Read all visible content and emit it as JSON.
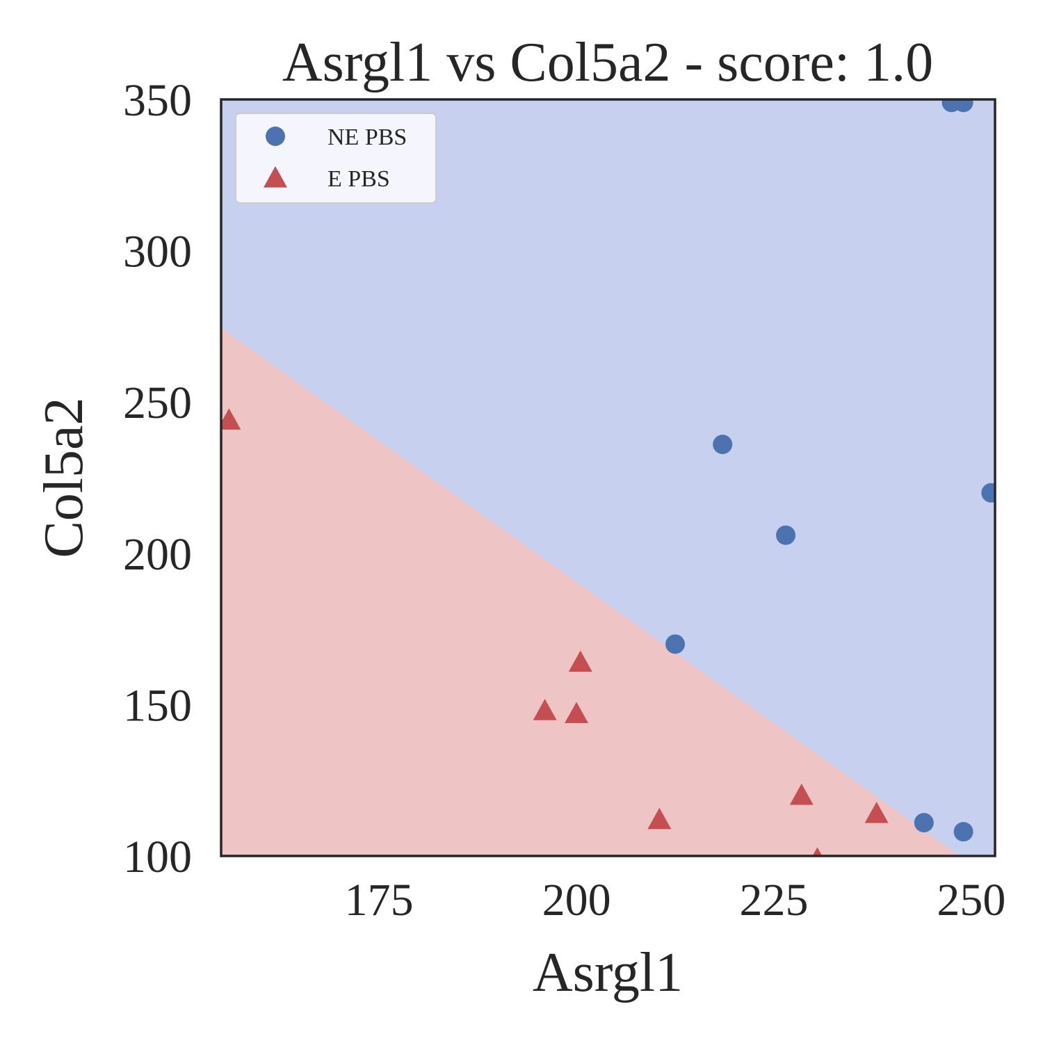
{
  "chart_data": {
    "type": "scatter",
    "title": "Asrgl1 vs Col5a2 - score: 1.0",
    "xlabel": "Asrgl1",
    "ylabel": "Col5a2",
    "xlim": [
      155,
      253
    ],
    "ylim": [
      100,
      350
    ],
    "xticks": [
      175,
      200,
      225,
      250
    ],
    "yticks": [
      100,
      150,
      200,
      250,
      300,
      350
    ],
    "grid": false,
    "legend_position": "top-left",
    "decision_regions": {
      "boundary": [
        [
          155,
          274.5
        ],
        [
          248.5,
          100
        ]
      ],
      "upper_color": "#c8d0f0",
      "lower_color": "#efc4c4"
    },
    "series": [
      {
        "name": "NE PBS",
        "marker": "circle",
        "color": "#4c72b0",
        "points": [
          [
            247.5,
            349
          ],
          [
            249,
            349
          ],
          [
            218.5,
            236
          ],
          [
            226.5,
            206
          ],
          [
            212.5,
            170
          ],
          [
            252.5,
            220
          ],
          [
            244,
            111
          ],
          [
            249,
            108
          ]
        ]
      },
      {
        "name": "E PBS",
        "marker": "triangle",
        "color": "#c44e52",
        "points": [
          [
            156,
            244
          ],
          [
            200.5,
            164
          ],
          [
            196,
            148
          ],
          [
            200,
            147
          ],
          [
            210.5,
            112
          ],
          [
            228.5,
            120
          ],
          [
            238,
            114
          ],
          [
            230.5,
            99
          ]
        ]
      }
    ]
  }
}
